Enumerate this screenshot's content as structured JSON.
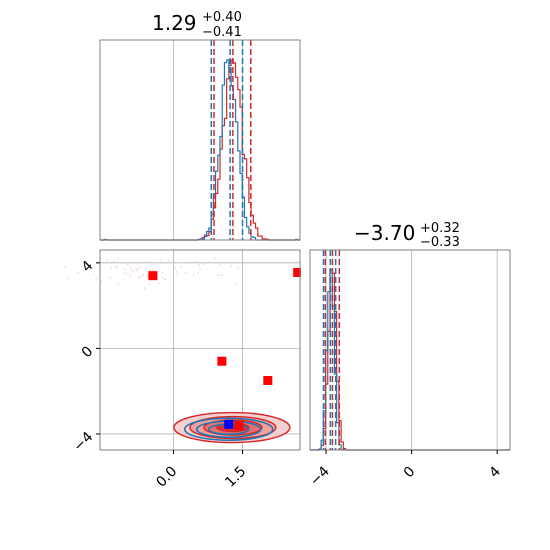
{
  "chart_data": {
    "type": "corner",
    "colors": {
      "red": "#d62728",
      "blue": "#1f77b4",
      "marker_red": "#ff0000",
      "marker_blue": "#0000ff",
      "grid": "#b0b0b0"
    },
    "titles": [
      {
        "median": "1.29",
        "plus": "+0.40",
        "minus": "−0.41"
      },
      {
        "median": "−3.70",
        "plus": "+0.32",
        "minus": "−0.33"
      }
    ],
    "param1": {
      "range": [
        -1.6,
        2.75
      ],
      "ticks": [
        0.0,
        1.5
      ],
      "tick_labels": [
        "0.0",
        "1.5"
      ],
      "red_quantiles": [
        0.88,
        1.29,
        1.68
      ],
      "blue_quantiles": [
        0.82,
        1.23,
        1.5
      ],
      "red_mean": 1.29,
      "red_sd": 0.21,
      "blue_mean": 1.2,
      "blue_sd": 0.18
    },
    "param2": {
      "range": [
        -4.75,
        4.6
      ],
      "ticks": [
        -4,
        0,
        4
      ],
      "tick_labels": [
        "−4",
        "0",
        "4"
      ],
      "red_quantiles": [
        -4.03,
        -3.7,
        -3.38
      ],
      "blue_quantiles": [
        -4.12,
        -3.8,
        -3.55
      ],
      "red_mean": -3.7,
      "red_sd": 0.18,
      "blue_mean": -3.78,
      "blue_sd": 0.16
    },
    "red_markers": [
      {
        "x": -0.45,
        "y": 3.4
      },
      {
        "x": 2.7,
        "y": 3.55
      },
      {
        "x": 1.05,
        "y": -0.6
      },
      {
        "x": 2.05,
        "y": -1.5
      },
      {
        "x": 1.42,
        "y": -3.6
      }
    ],
    "blue_markers": [
      {
        "x": 1.2,
        "y": -3.55
      }
    ]
  }
}
